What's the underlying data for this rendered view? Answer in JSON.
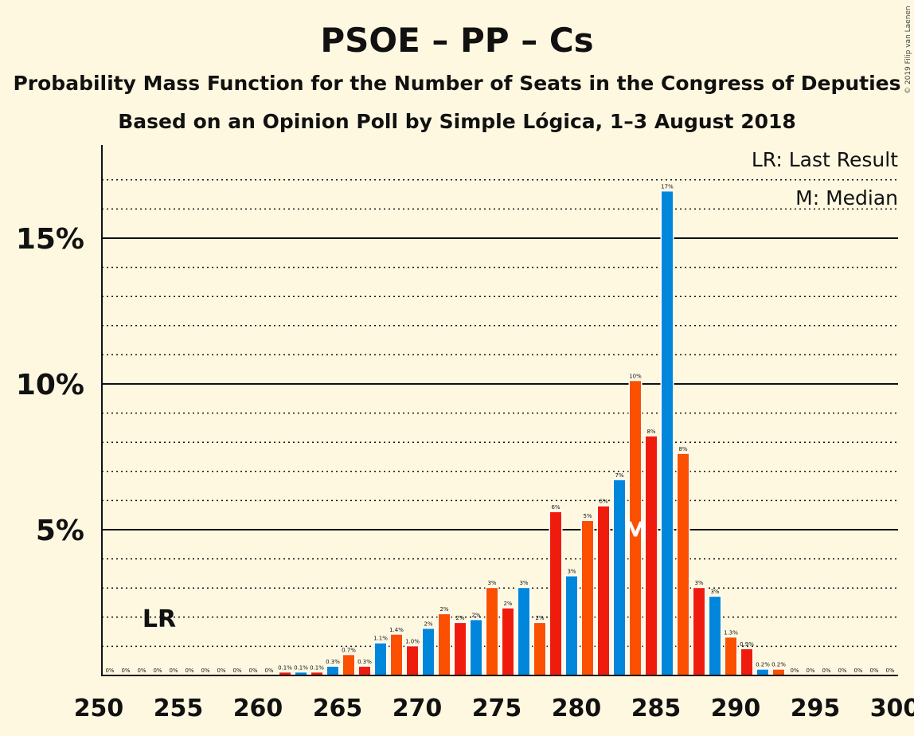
{
  "chart_data": {
    "type": "bar",
    "title": "PSOE – PP – Cs",
    "subtitle1": "Probability Mass Function for the Number of Seats in the Congress of Deputies",
    "subtitle2": "Based on an Opinion Poll by Simple Lógica, 1–3 August 2018",
    "copyright": "© 2019 Filip van Laenen",
    "legend": {
      "lr": "LR: Last Result",
      "m": "M: Median"
    },
    "y_ticks": [
      {
        "value": 5,
        "label": "5%"
      },
      {
        "value": 10,
        "label": "10%"
      },
      {
        "value": 15,
        "label": "15%"
      }
    ],
    "x_ticks": [
      "250",
      "255",
      "260",
      "265",
      "270",
      "275",
      "280",
      "285",
      "290",
      "295",
      "300"
    ],
    "xlim": [
      250,
      300
    ],
    "ylim": [
      0,
      18
    ],
    "last_result": {
      "seat": 254,
      "label": "LR"
    },
    "median": {
      "seat": 284,
      "label": "M"
    },
    "colors": {
      "blue": "#0087DC",
      "orange": "#FA5000",
      "red": "#EF1C0E",
      "background": "#FFF8E1"
    },
    "seats": [
      251,
      252,
      253,
      254,
      255,
      256,
      257,
      258,
      259,
      260,
      261,
      262,
      263,
      264,
      265,
      266,
      267,
      268,
      269,
      270,
      271,
      272,
      273,
      274,
      275,
      276,
      277,
      278,
      279,
      280,
      281,
      282,
      283,
      284,
      285,
      286,
      287,
      288,
      289,
      290,
      291,
      292,
      293,
      294,
      295,
      296,
      297,
      298,
      299,
      300
    ],
    "values": [
      0,
      0,
      0,
      0,
      0,
      0,
      0,
      0,
      0,
      0,
      0,
      0.1,
      0.1,
      0.1,
      0.3,
      0.7,
      0.3,
      1.1,
      1.4,
      1.0,
      1.6,
      2.1,
      1.8,
      1.9,
      3.0,
      2.3,
      3.0,
      1.8,
      5.6,
      3.4,
      5.3,
      5.8,
      6.7,
      10.1,
      8.2,
      16.6,
      7.6,
      3.0,
      2.7,
      1.3,
      0.9,
      0.2,
      0.2,
      0,
      0,
      0,
      0,
      0,
      0,
      0
    ],
    "data_labels": [
      "0%",
      "0%",
      "0%",
      "0%",
      "0%",
      "0%",
      "0%",
      "0%",
      "0%",
      "0%",
      "0%",
      "0.1%",
      "0.1%",
      "0.1%",
      "0.3%",
      "0.7%",
      "0.3%",
      "1.1%",
      "1.4%",
      "1.0%",
      "2%",
      "2%",
      "2%",
      "2%",
      "3%",
      "2%",
      "3%",
      "2%",
      "6%",
      "3%",
      "5%",
      "6%",
      "7%",
      "10%",
      "8%",
      "17%",
      "8%",
      "3%",
      "3%",
      "1.3%",
      "0.9%",
      "0.2%",
      "0.2%",
      "0%",
      "0%",
      "0%",
      "0%",
      "0%",
      "0%",
      "0%"
    ],
    "bar_colors": [
      "blue",
      "orange",
      "red",
      "blue",
      "orange",
      "red",
      "blue",
      "orange",
      "red",
      "blue",
      "orange",
      "red",
      "blue",
      "red",
      "blue",
      "orange",
      "red",
      "blue",
      "orange",
      "red",
      "blue",
      "orange",
      "red",
      "blue",
      "orange",
      "red",
      "blue",
      "orange",
      "red",
      "blue",
      "orange",
      "red",
      "blue",
      "orange",
      "red",
      "blue",
      "orange",
      "red",
      "blue",
      "orange",
      "red",
      "blue",
      "orange",
      "red",
      "blue",
      "orange",
      "red",
      "blue",
      "orange",
      "red"
    ]
  }
}
